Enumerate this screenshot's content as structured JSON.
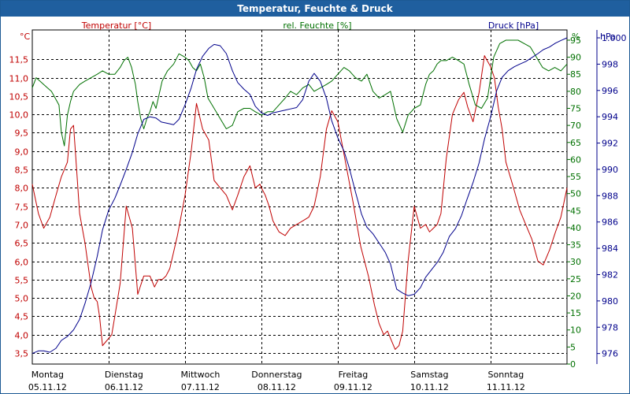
{
  "window": {
    "title": "Temperatur, Feuchte & Druck"
  },
  "chart_data": {
    "type": "line",
    "colors": {
      "temperature": "#c00000",
      "humidity": "#007000",
      "pressure": "#00008b",
      "grid": "#000000"
    },
    "legend_labels": {
      "temperature": "Temperatur [°C]",
      "humidity": "rel. Feuchte [%]",
      "pressure": "Druck [hPa]"
    },
    "axes": {
      "temperature": {
        "unit": "°C",
        "ylim": [
          3.2,
          12.3
        ],
        "ticks": [
          "3,5",
          "4,0",
          "4,5",
          "5,0",
          "5,5",
          "6,0",
          "6,5",
          "7,0",
          "7,5",
          "8,0",
          "8,5",
          "9,0",
          "9,5",
          "10,0",
          "10,5",
          "11,0",
          "11,5"
        ]
      },
      "humidity": {
        "unit": "%",
        "ylim": [
          0,
          98
        ],
        "ticks": [
          "0",
          "5",
          "10",
          "15",
          "20",
          "25",
          "30",
          "35",
          "40",
          "45",
          "50",
          "55",
          "60",
          "65",
          "70",
          "75",
          "80",
          "85",
          "90",
          "95"
        ]
      },
      "pressure": {
        "unit": "hPa",
        "ylim": [
          975.2,
          1000.6
        ],
        "ticks": [
          "976",
          "978",
          "980",
          "982",
          "984",
          "986",
          "988",
          "990",
          "992",
          "994",
          "996",
          "998",
          "1.000"
        ]
      }
    },
    "x_range": [
      0,
      7
    ],
    "x_labels": [
      {
        "day": "Montag",
        "date": "05.11.12"
      },
      {
        "day": "Dienstag",
        "date": "06.11.12"
      },
      {
        "day": "Mittwoch",
        "date": "07.11.12"
      },
      {
        "day": "Donnerstag",
        "date": "08.11.12"
      },
      {
        "day": "Freitag",
        "date": "09.11.12"
      },
      {
        "day": "Samstag",
        "date": "10.11.12"
      },
      {
        "day": "Sonntag",
        "date": "11.11.12"
      }
    ],
    "grid": true,
    "series": [
      {
        "key": "temperature",
        "axis": "temperature",
        "x": [
          0,
          0.08,
          0.15,
          0.23,
          0.31,
          0.38,
          0.46,
          0.5,
          0.54,
          0.58,
          0.62,
          0.69,
          0.77,
          0.81,
          0.85,
          0.88,
          0.92,
          0.96,
          1.0,
          1.04,
          1.08,
          1.15,
          1.23,
          1.31,
          1.38,
          1.46,
          1.54,
          1.6,
          1.65,
          1.7,
          1.75,
          1.8,
          1.9,
          2.0,
          2.08,
          2.15,
          2.23,
          2.31,
          2.38,
          2.46,
          2.54,
          2.62,
          2.69,
          2.77,
          2.85,
          2.92,
          2.98,
          3.0,
          3.05,
          3.1,
          3.15,
          3.23,
          3.31,
          3.38,
          3.46,
          3.54,
          3.62,
          3.69,
          3.77,
          3.85,
          3.92,
          4.0,
          4.1,
          4.2,
          4.3,
          4.4,
          4.48,
          4.54,
          4.6,
          4.65,
          4.69,
          4.75,
          4.8,
          4.85,
          4.92,
          5.0,
          5.08,
          5.15,
          5.2,
          5.25,
          5.3,
          5.35,
          5.42,
          5.5,
          5.58,
          5.65,
          5.7,
          5.77,
          5.85,
          5.92,
          6.0,
          6.05,
          6.1,
          6.15,
          6.2,
          6.3,
          6.38,
          6.46,
          6.54,
          6.62,
          6.69,
          6.77,
          6.85,
          6.92,
          6.96,
          7.0
        ],
        "values": [
          8.1,
          7.3,
          6.9,
          7.2,
          7.8,
          8.3,
          8.7,
          9.6,
          9.7,
          8.5,
          7.3,
          6.5,
          5.3,
          5.0,
          4.9,
          4.5,
          3.7,
          3.8,
          3.9,
          4.0,
          4.5,
          5.4,
          7.5,
          6.9,
          5.1,
          5.6,
          5.6,
          5.3,
          5.5,
          5.5,
          5.6,
          5.8,
          6.7,
          7.8,
          9.0,
          10.3,
          9.6,
          9.3,
          8.2,
          8.0,
          7.8,
          7.4,
          7.8,
          8.3,
          8.6,
          8.0,
          8.1,
          8.0,
          7.8,
          7.5,
          7.1,
          6.8,
          6.7,
          6.9,
          7.0,
          7.1,
          7.2,
          7.5,
          8.3,
          9.6,
          10.1,
          9.8,
          8.7,
          7.6,
          6.4,
          5.6,
          4.8,
          4.3,
          4.0,
          4.1,
          3.9,
          3.6,
          3.7,
          4.1,
          6.0,
          7.5,
          6.9,
          7.0,
          6.8,
          6.9,
          7.0,
          7.3,
          8.8,
          10.0,
          10.4,
          10.6,
          10.2,
          9.8,
          10.6,
          11.6,
          11.3,
          11.0,
          10.2,
          9.6,
          8.7,
          8.0,
          7.4,
          7.0,
          6.6,
          6.0,
          5.9,
          6.3,
          6.8,
          7.2,
          7.6,
          8.0
        ]
      },
      {
        "key": "humidity",
        "axis": "humidity",
        "x": [
          0,
          0.05,
          0.1,
          0.15,
          0.2,
          0.25,
          0.3,
          0.35,
          0.38,
          0.42,
          0.46,
          0.5,
          0.54,
          0.58,
          0.62,
          0.69,
          0.77,
          0.85,
          0.92,
          1.0,
          1.08,
          1.15,
          1.2,
          1.25,
          1.3,
          1.35,
          1.38,
          1.42,
          1.46,
          1.5,
          1.54,
          1.58,
          1.62,
          1.65,
          1.7,
          1.77,
          1.85,
          1.92,
          2.0,
          2.05,
          2.1,
          2.15,
          2.2,
          2.25,
          2.3,
          2.38,
          2.46,
          2.54,
          2.62,
          2.69,
          2.77,
          2.85,
          2.92,
          3.0,
          3.08,
          3.15,
          3.23,
          3.31,
          3.38,
          3.46,
          3.54,
          3.62,
          3.69,
          3.77,
          3.85,
          3.92,
          4.0,
          4.08,
          4.15,
          4.23,
          4.31,
          4.38,
          4.46,
          4.54,
          4.62,
          4.69,
          4.77,
          4.85,
          4.92,
          5.0,
          5.08,
          5.15,
          5.2,
          5.25,
          5.3,
          5.35,
          5.42,
          5.5,
          5.58,
          5.65,
          5.72,
          5.8,
          5.88,
          5.96,
          6.04,
          6.12,
          6.2,
          6.28,
          6.36,
          6.44,
          6.52,
          6.6,
          6.68,
          6.76,
          6.84,
          6.92,
          7.0
        ],
        "values": [
          81,
          84,
          83,
          82,
          81,
          80,
          78,
          76,
          68,
          64,
          73,
          77,
          80,
          81,
          82,
          83,
          84,
          85,
          86,
          85,
          85,
          87,
          89,
          90,
          87,
          82,
          77,
          72,
          69,
          72,
          74,
          77,
          75,
          78,
          83,
          86,
          88,
          91,
          90,
          89,
          87,
          86,
          88,
          84,
          78,
          75,
          72,
          69,
          70,
          74,
          75,
          75,
          74,
          73,
          74,
          74,
          76,
          78,
          80,
          79,
          81,
          82,
          80,
          81,
          82,
          83,
          85,
          87,
          86,
          84,
          83,
          85,
          80,
          78,
          79,
          80,
          72,
          68,
          73,
          75,
          76,
          82,
          85,
          86,
          88,
          89,
          89,
          90,
          89,
          88,
          82,
          76,
          75,
          78,
          90,
          94,
          95,
          95,
          95,
          94,
          93,
          90,
          87,
          86,
          87,
          86,
          88
        ]
      },
      {
        "key": "pressure",
        "axis": "pressure",
        "x": [
          0,
          0.08,
          0.15,
          0.23,
          0.31,
          0.38,
          0.46,
          0.54,
          0.62,
          0.69,
          0.77,
          0.85,
          0.92,
          1.0,
          1.08,
          1.15,
          1.23,
          1.31,
          1.38,
          1.46,
          1.54,
          1.62,
          1.69,
          1.77,
          1.85,
          1.92,
          2.0,
          2.08,
          2.15,
          2.23,
          2.31,
          2.38,
          2.46,
          2.54,
          2.62,
          2.69,
          2.77,
          2.85,
          2.92,
          3.0,
          3.08,
          3.15,
          3.23,
          3.31,
          3.38,
          3.46,
          3.54,
          3.62,
          3.69,
          3.77,
          3.85,
          3.92,
          4.0,
          4.08,
          4.15,
          4.23,
          4.31,
          4.38,
          4.46,
          4.54,
          4.62,
          4.69,
          4.77,
          4.85,
          4.92,
          5.0,
          5.08,
          5.15,
          5.23,
          5.31,
          5.38,
          5.46,
          5.54,
          5.62,
          5.69,
          5.77,
          5.85,
          5.92,
          6.0,
          6.08,
          6.15,
          6.23,
          6.31,
          6.38,
          6.46,
          6.54,
          6.62,
          6.69,
          6.77,
          6.85,
          6.92,
          7.0
        ],
        "values": [
          976.0,
          976.2,
          976.2,
          976.1,
          976.4,
          977.0,
          977.3,
          977.8,
          978.6,
          979.8,
          981.4,
          983.4,
          985.4,
          986.9,
          987.8,
          988.8,
          990.0,
          991.3,
          992.7,
          993.8,
          994.0,
          993.9,
          993.6,
          993.5,
          993.4,
          993.8,
          994.9,
          996.2,
          997.6,
          998.6,
          999.2,
          999.5,
          999.4,
          998.8,
          997.5,
          996.6,
          996.1,
          995.7,
          994.8,
          994.3,
          994.1,
          994.3,
          994.4,
          994.5,
          994.6,
          994.7,
          995.3,
          996.7,
          997.3,
          996.7,
          995.4,
          993.7,
          992.4,
          991.4,
          990.1,
          988.3,
          986.6,
          985.6,
          985.1,
          984.4,
          983.7,
          982.8,
          980.9,
          980.6,
          980.4,
          980.5,
          981.0,
          981.8,
          982.4,
          983.0,
          983.7,
          984.9,
          985.5,
          986.5,
          987.7,
          989.0,
          990.5,
          992.3,
          994.0,
          996.0,
          997.0,
          997.5,
          997.8,
          998.0,
          998.2,
          998.5,
          998.8,
          999.1,
          999.3,
          999.6,
          999.8,
          1000.0
        ]
      }
    ]
  }
}
